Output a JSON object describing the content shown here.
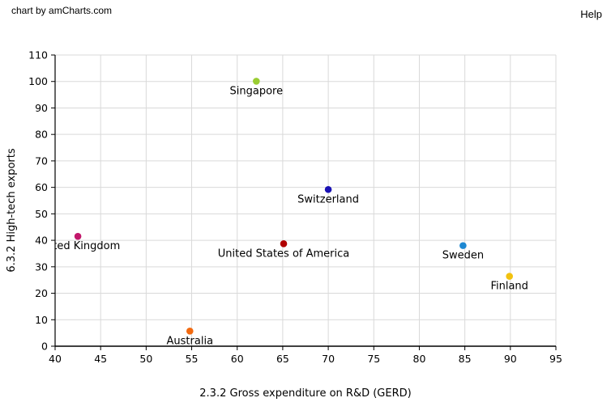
{
  "header": {
    "credit": "chart by amCharts.com",
    "help": "Help"
  },
  "chart_data": {
    "type": "scatter",
    "title": "",
    "xlabel": "2.3.2 Gross expenditure on R&D (GERD)",
    "ylabel": "6.3.2 High-tech exports",
    "xlim": [
      40,
      95
    ],
    "ylim": [
      0,
      110
    ],
    "xticks": [
      40,
      45,
      50,
      55,
      60,
      65,
      70,
      75,
      80,
      85,
      90,
      95
    ],
    "yticks": [
      0,
      10,
      20,
      30,
      40,
      50,
      60,
      70,
      80,
      90,
      100,
      110
    ],
    "grid": true,
    "points": [
      {
        "label": "Singapore",
        "x": 62.1,
        "y": 100.1,
        "color": "#9acd32"
      },
      {
        "label": "Switzerland",
        "x": 70.0,
        "y": 59.2,
        "color": "#1a12b4"
      },
      {
        "label": "United Kingdom",
        "x": 42.5,
        "y": 41.5,
        "color": "#c2186b"
      },
      {
        "label": "United States of America",
        "x": 65.1,
        "y": 38.7,
        "color": "#b00000"
      },
      {
        "label": "Sweden",
        "x": 84.8,
        "y": 38.0,
        "color": "#1e88d2"
      },
      {
        "label": "Finland",
        "x": 89.9,
        "y": 26.4,
        "color": "#f2c20f"
      },
      {
        "label": "Australia",
        "x": 54.8,
        "y": 5.7,
        "color": "#f26a10"
      }
    ]
  }
}
